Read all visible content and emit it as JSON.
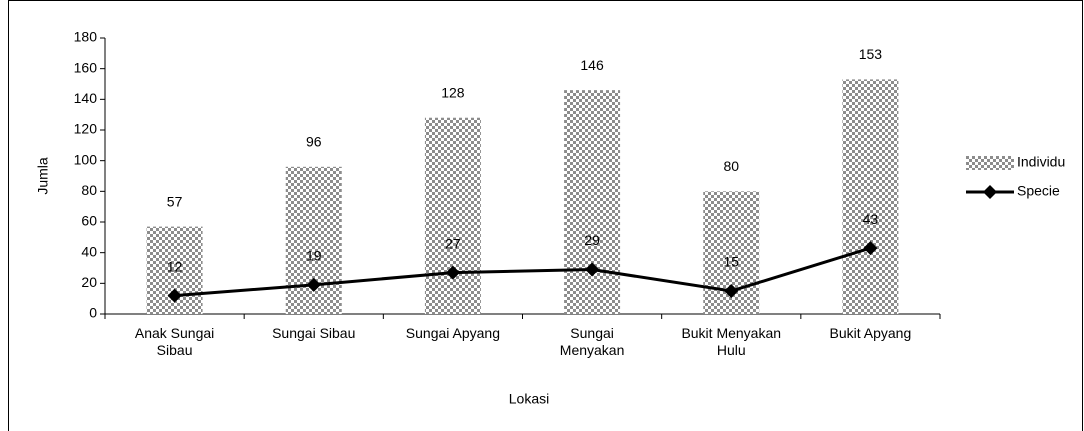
{
  "chart_data": {
    "type": "bar+line",
    "x_label": "Lokasi",
    "y_label": "Jumla",
    "categories": [
      "Anak Sungai\nSibau",
      "Sungai Sibau",
      "Sungai Apyang",
      "Sungai\nMenyakan",
      "Bukit Menyakan\nHulu",
      "Bukit Apyang"
    ],
    "series": [
      {
        "name": "Individu",
        "type": "bar",
        "color": "#8c8c8c",
        "values": [
          57,
          96,
          128,
          146,
          80,
          153
        ]
      },
      {
        "name": "Specie",
        "type": "line",
        "color": "#000000",
        "values": [
          12,
          19,
          27,
          29,
          15,
          43
        ]
      }
    ],
    "ylim": [
      0,
      180
    ],
    "yticks": [
      0,
      20,
      40,
      60,
      80,
      100,
      120,
      140,
      160,
      180
    ],
    "legend": "right"
  }
}
